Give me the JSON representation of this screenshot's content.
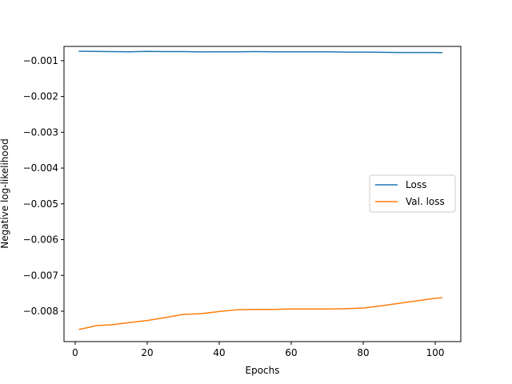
{
  "chart_data": {
    "type": "line",
    "title": "",
    "xlabel": "Epochs",
    "ylabel": "Negative log-likelihood",
    "xlim": [
      -3.1,
      107.1
    ],
    "ylim": [
      -0.00885,
      -0.0006
    ],
    "x_ticks": [
      0,
      20,
      40,
      60,
      80,
      100
    ],
    "x_tick_labels": [
      "0",
      "20",
      "40",
      "60",
      "80",
      "100"
    ],
    "y_ticks": [
      -0.001,
      -0.002,
      -0.003,
      -0.004,
      -0.005,
      -0.006,
      -0.007,
      -0.008
    ],
    "y_tick_labels": [
      "−0.001",
      "−0.002",
      "−0.003",
      "−0.004",
      "−0.005",
      "−0.006",
      "−0.007",
      "−0.008"
    ],
    "grid": false,
    "legend_position": "center-right",
    "series": [
      {
        "name": "Loss",
        "color": "#1f77b4",
        "x": [
          1,
          5,
          10,
          15,
          20,
          25,
          30,
          35,
          40,
          45,
          50,
          55,
          60,
          65,
          70,
          75,
          80,
          85,
          90,
          95,
          100,
          102
        ],
        "y": [
          -0.000735,
          -0.00074,
          -0.000745,
          -0.00075,
          -0.00074,
          -0.000745,
          -0.000745,
          -0.000755,
          -0.00075,
          -0.00075,
          -0.000745,
          -0.00075,
          -0.00075,
          -0.00075,
          -0.00075,
          -0.00076,
          -0.00076,
          -0.000765,
          -0.00077,
          -0.00077,
          -0.00077,
          -0.000775
        ]
      },
      {
        "name": "Val. loss",
        "color": "#ff7f0e",
        "x": [
          1,
          3,
          6,
          10,
          15,
          20,
          25,
          30,
          35,
          40,
          45,
          50,
          55,
          60,
          65,
          70,
          75,
          80,
          85,
          90,
          95,
          100,
          102
        ],
        "y": [
          -0.00851,
          -0.00847,
          -0.0084,
          -0.00838,
          -0.00832,
          -0.00826,
          -0.00818,
          -0.00809,
          -0.00807,
          -0.00801,
          -0.00796,
          -0.00795,
          -0.00795,
          -0.00794,
          -0.00794,
          -0.00794,
          -0.00793,
          -0.00791,
          -0.00785,
          -0.00778,
          -0.00771,
          -0.00764,
          -0.00762
        ]
      }
    ]
  }
}
